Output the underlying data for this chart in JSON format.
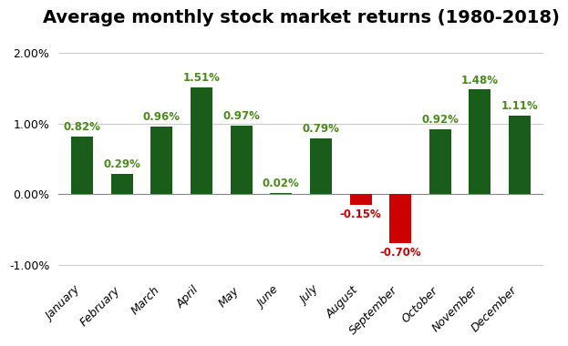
{
  "title": "Average monthly stock market returns (1980-2018)",
  "months": [
    "January",
    "February",
    "March",
    "April",
    "May",
    "June",
    "July",
    "August",
    "September",
    "October",
    "November",
    "December"
  ],
  "values": [
    0.82,
    0.29,
    0.96,
    1.51,
    0.97,
    0.02,
    0.79,
    -0.15,
    -0.7,
    0.92,
    1.48,
    1.11
  ],
  "bar_color_positive": "#1a5c1a",
  "bar_color_negative": "#cc0000",
  "label_color_positive": "#4a8c1a",
  "label_color_negative": "#cc0000",
  "title_color": "#000000",
  "background_color": "#ffffff",
  "grid_color": "#cccccc",
  "ylim": [
    -1.15,
    2.25
  ],
  "yticks": [
    -1.0,
    0.0,
    1.0,
    2.0
  ],
  "title_fontsize": 14,
  "label_fontsize": 8.5,
  "tick_fontsize": 9,
  "bar_width": 0.55
}
